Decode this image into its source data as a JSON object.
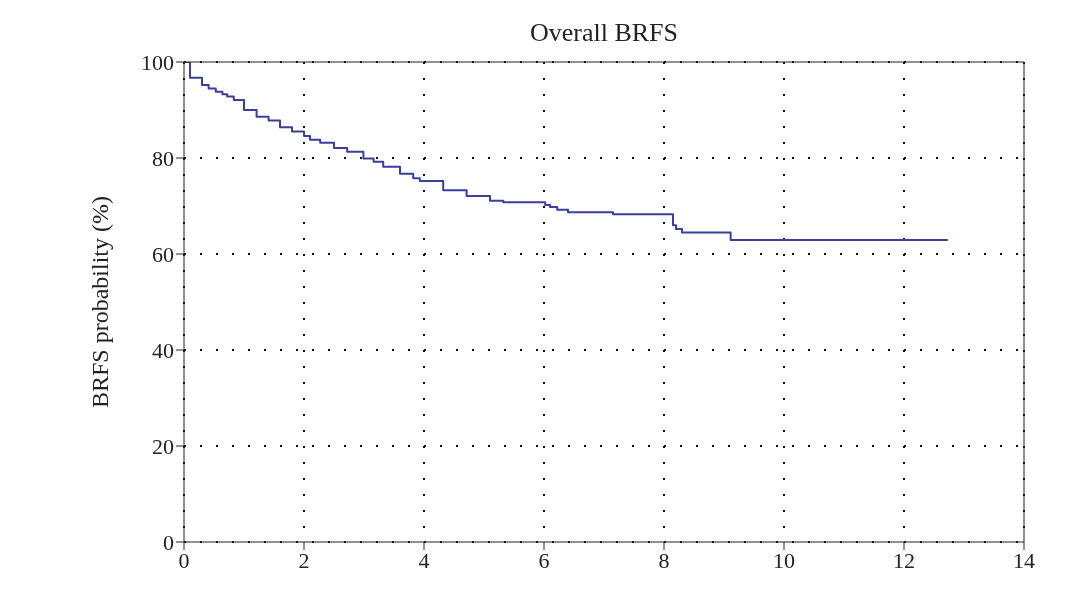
{
  "chart_data": {
    "type": "step",
    "title": "Overall BRFS",
    "ylabel": "BRFS probability (%)",
    "x": [
      0,
      0.1,
      0.21,
      0.3,
      0.41,
      0.53,
      0.64,
      0.72,
      0.83,
      1.0,
      1.21,
      1.41,
      1.6,
      1.8,
      2.0,
      2.1,
      2.27,
      2.5,
      2.72,
      2.99,
      3.16,
      3.32,
      3.6,
      3.82,
      3.93,
      4.32,
      4.71,
      5.1,
      5.32,
      6.02,
      6.1,
      6.22,
      6.4,
      7.15,
      8.15,
      8.2,
      8.3,
      9.11,
      12.73
    ],
    "series": [
      {
        "color": "#3b3f9c",
        "values": [
          100,
          96.7,
          96.7,
          95.2,
          94.5,
          93.8,
          93.3,
          92.8,
          92.1,
          90,
          88.6,
          87.8,
          86.4,
          85.5,
          84.6,
          83.8,
          83.2,
          82.1,
          81.3,
          79.9,
          79.2,
          78.2,
          76.7,
          75.8,
          75.2,
          73.3,
          72.1,
          71.1,
          70.8,
          70.2,
          69.8,
          69.2,
          68.7,
          68.3,
          66,
          65.2,
          64.5,
          62.9,
          62.9
        ]
      }
    ],
    "xlim": [
      0,
      14
    ],
    "xticks": [
      0,
      2,
      4,
      6,
      8,
      10,
      12,
      14
    ],
    "ylim": [
      0,
      100
    ],
    "yticks": [
      0,
      20,
      40,
      60,
      80,
      100
    ],
    "grid": true,
    "line_style": "solid"
  }
}
